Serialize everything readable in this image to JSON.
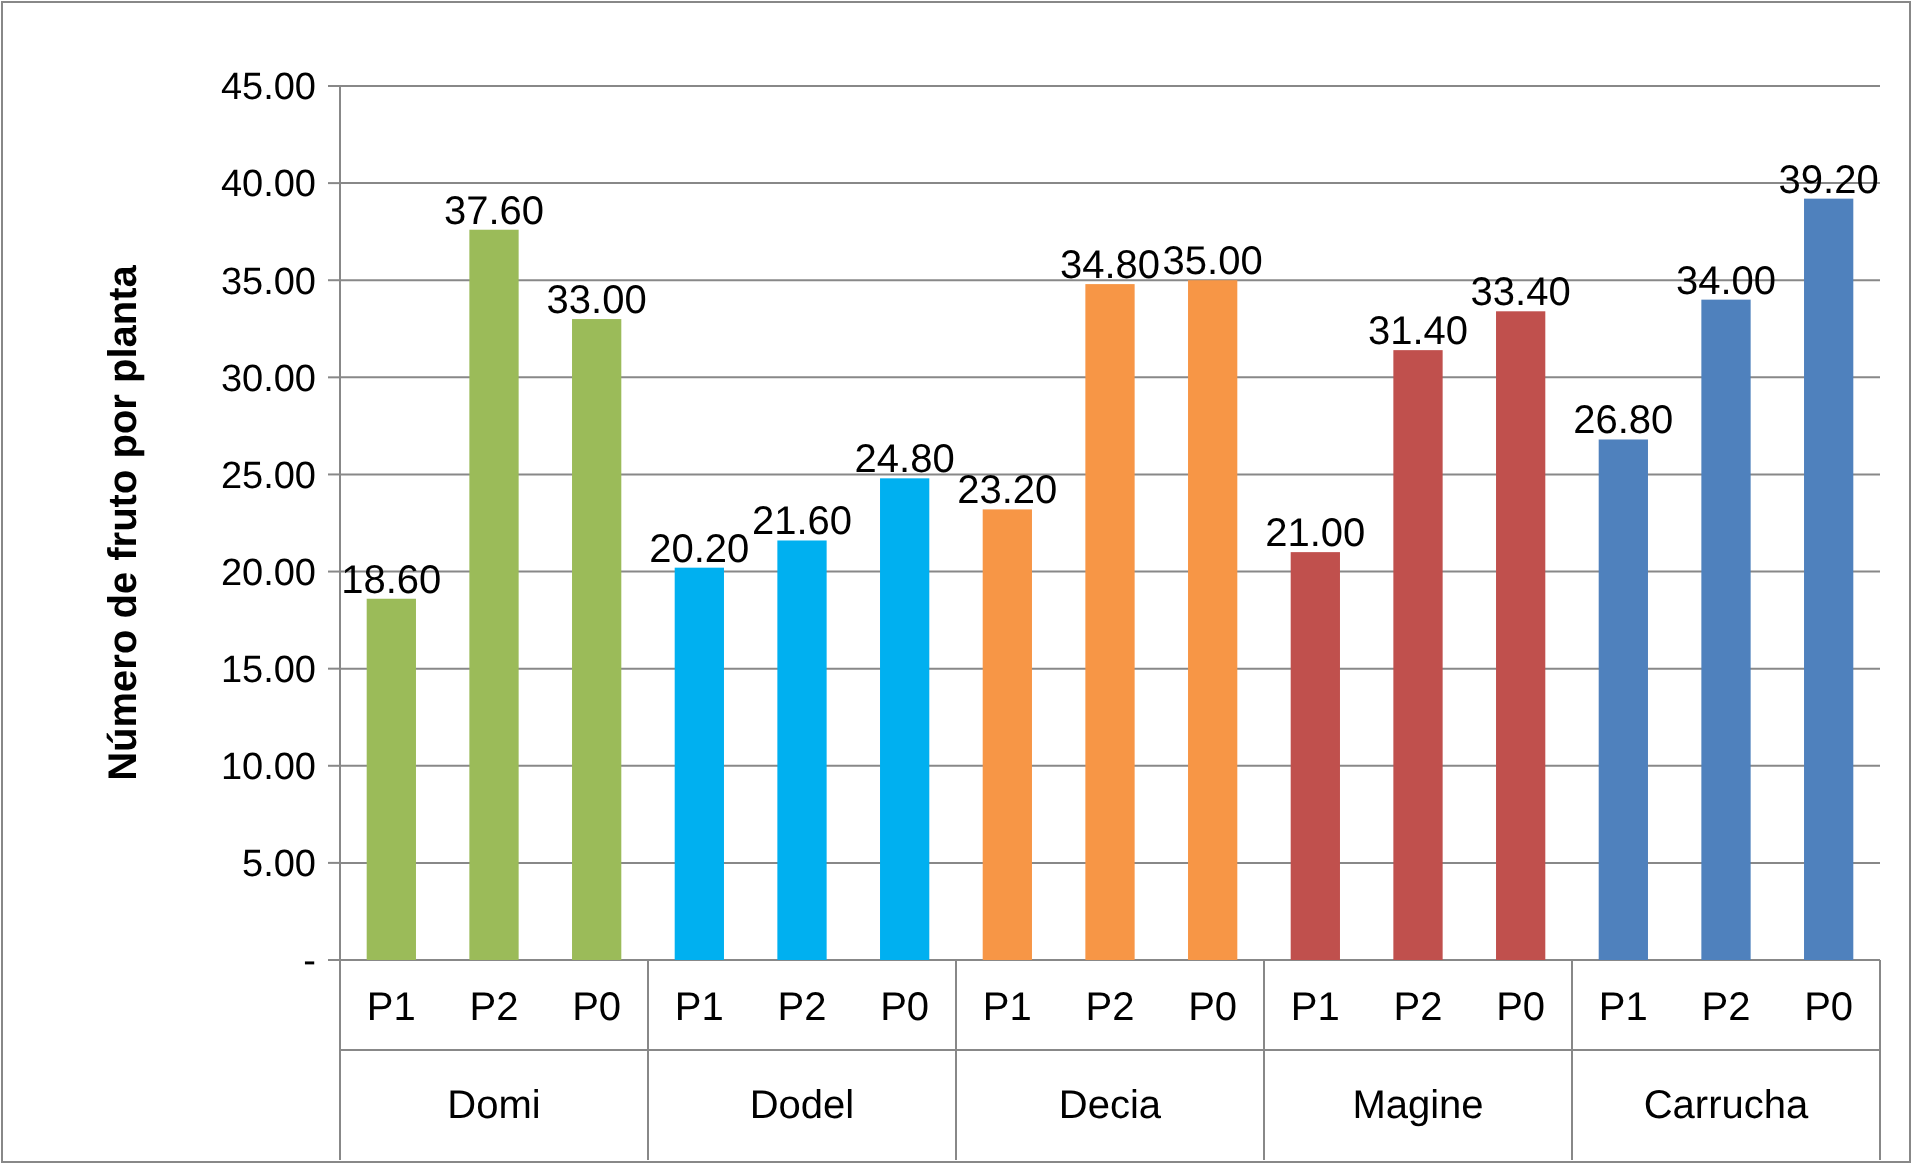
{
  "chart_data": {
    "type": "bar",
    "ylabel": "Número de fruto por planta",
    "categories": [
      "P1",
      "P2",
      "P0",
      "P1",
      "P2",
      "P0",
      "P1",
      "P2",
      "P0",
      "P1",
      "P2",
      "P0",
      "P1",
      "P2",
      "P0"
    ],
    "annotations": [
      "Domi",
      "Dodel",
      "Decia",
      "Magine",
      "Carrucha"
    ],
    "values": [
      18.6,
      37.6,
      33.0,
      20.2,
      21.6,
      24.8,
      23.2,
      34.8,
      35.0,
      21.0,
      31.4,
      33.4,
      26.8,
      34.0,
      39.2
    ],
    "value_labels": [
      "18.60",
      "37.60",
      "33.00",
      "20.20",
      "21.60",
      "24.80",
      "23.20",
      "34.80",
      "35.00",
      "21.00",
      "31.40",
      "33.40",
      "26.80",
      "34.00",
      "39.20"
    ],
    "colors": [
      "#9bbb59",
      "#9bbb59",
      "#9bbb59",
      "#00b0f0",
      "#00b0f0",
      "#00b0f0",
      "#f79646",
      "#f79646",
      "#f79646",
      "#c0504d",
      "#c0504d",
      "#c0504d",
      "#4f81bd",
      "#4f81bd",
      "#4f81bd"
    ],
    "ylim": [
      0,
      45
    ],
    "yticks": [
      {
        "value": 0,
        "label": "-"
      },
      {
        "value": 5,
        "label": "5.00"
      },
      {
        "value": 10,
        "label": "10.00"
      },
      {
        "value": 15,
        "label": "15.00"
      },
      {
        "value": 20,
        "label": "20.00"
      },
      {
        "value": 25,
        "label": "25.00"
      },
      {
        "value": 30,
        "label": "30.00"
      },
      {
        "value": 35,
        "label": "35.00"
      },
      {
        "value": 40,
        "label": "40.00"
      },
      {
        "value": 45,
        "label": "45.00"
      }
    ],
    "grid": "y"
  }
}
